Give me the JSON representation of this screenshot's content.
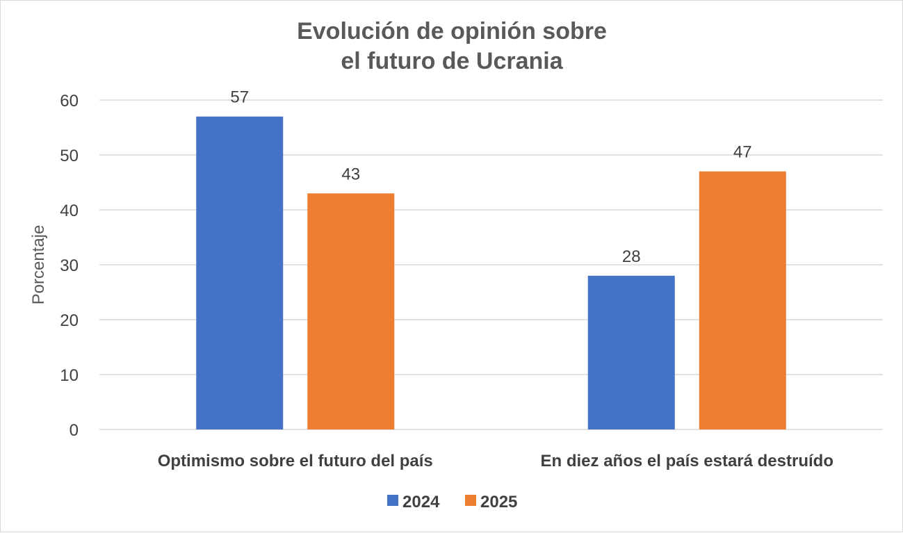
{
  "chart_data": {
    "type": "bar",
    "title_lines": [
      "Evolución de opinión sobre",
      "el futuro de Ucrania"
    ],
    "ylabel": "Porcentaje",
    "xlabel": "",
    "ylim": [
      0,
      60
    ],
    "yticks": [
      0,
      10,
      20,
      30,
      40,
      50,
      60
    ],
    "grid": true,
    "legend_position": "bottom",
    "categories": [
      "Optimismo sobre el futuro del país",
      "En diez años el país estará destruído"
    ],
    "series": [
      {
        "name": "2024",
        "color": "#4472c4",
        "values": [
          57,
          28
        ]
      },
      {
        "name": "2025",
        "color": "#ed7d31",
        "values": [
          43,
          47
        ]
      }
    ]
  }
}
